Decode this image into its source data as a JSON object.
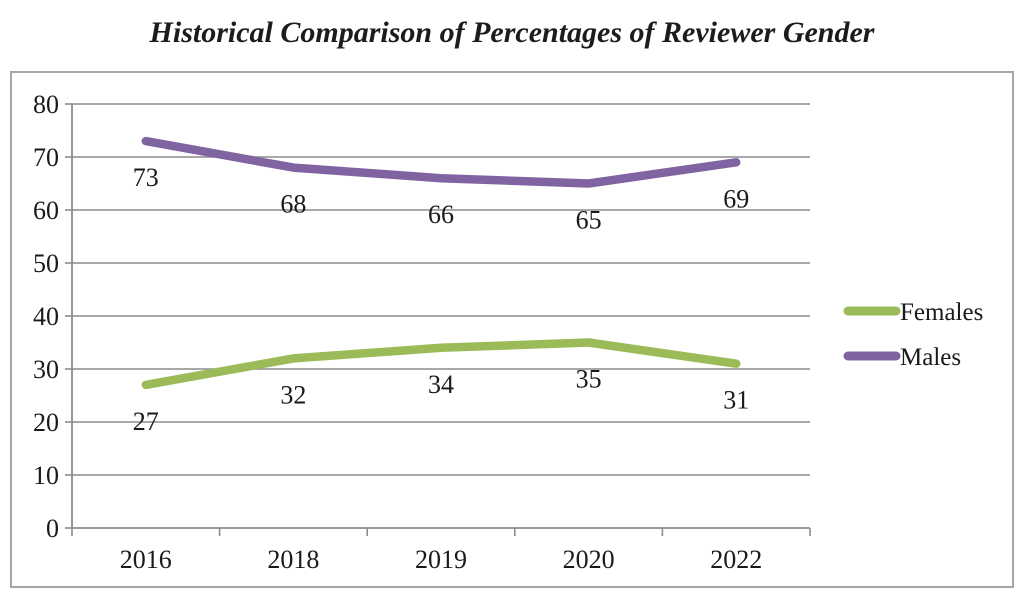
{
  "chart_data": {
    "type": "line",
    "title": "Historical Comparison of Percentages of Reviewer Gender",
    "categories": [
      "2016",
      "2018",
      "2019",
      "2020",
      "2022"
    ],
    "series": [
      {
        "name": "Females",
        "color": "#9bbb59",
        "values": [
          27,
          32,
          34,
          35,
          31
        ]
      },
      {
        "name": "Males",
        "color": "#8064a2",
        "values": [
          73,
          68,
          66,
          65,
          69
        ]
      }
    ],
    "ylim": [
      0,
      80
    ],
    "ytick_step": 10,
    "yticks": [
      0,
      10,
      20,
      30,
      40,
      50,
      60,
      70,
      80
    ],
    "xlabel": "",
    "ylabel": "",
    "grid": true,
    "data_labels": true,
    "legend_position": "right",
    "colors": {
      "gridline": "#8c8c8c",
      "axis": "#8c8c8c",
      "frame_border": "#a6a6a6",
      "label_text": "#1a1a1a"
    }
  }
}
